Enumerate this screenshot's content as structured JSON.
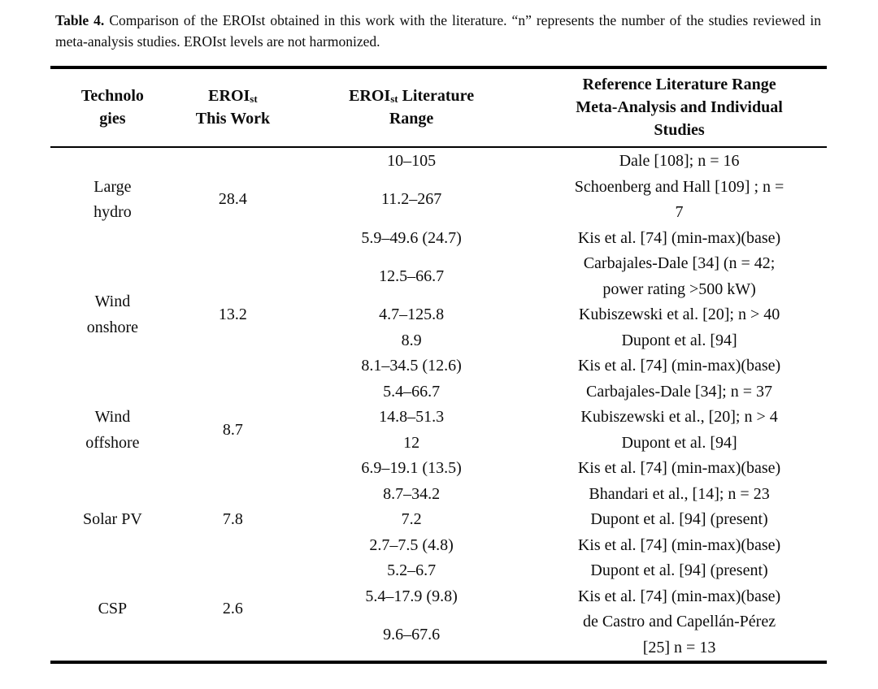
{
  "caption": {
    "label": "Table 4.",
    "text": "Comparison of the EROIst obtained in this work with the literature. “n” represents the number of the studies reviewed in meta-analysis studies. EROIst levels are not harmonized."
  },
  "table": {
    "headers": {
      "technologies": "Technolo\ngies",
      "eroi_this_work": {
        "base": "EROI",
        "sub": "st",
        "after": "",
        "line2": "This Work"
      },
      "eroi_literature": {
        "base": "EROI",
        "sub": "st",
        "after": " Literature",
        "line2": "Range"
      },
      "reference": "Reference Literature Range\nMeta-Analysis and Individual\nStudies"
    },
    "groups": [
      {
        "technology": "Large\nhydro",
        "eroi_this_work": "28.4",
        "rows": [
          {
            "range": "10–105",
            "reference": "Dale [108]; n = 16"
          },
          {
            "range": "11.2–267",
            "reference": "Schoenberg and Hall [109] ; n =\n7"
          },
          {
            "range": "5.9–49.6 (24.7)",
            "reference": "Kis et al. [74] (min-max)(base)"
          }
        ]
      },
      {
        "technology": "Wind\nonshore",
        "eroi_this_work": "13.2",
        "rows": [
          {
            "range": "12.5–66.7",
            "reference": "Carbajales-Dale [34] (n = 42;\npower rating >500 kW)"
          },
          {
            "range": "4.7–125.8",
            "reference": "Kubiszewski et al. [20]; n > 40"
          },
          {
            "range": "8.9",
            "reference": "Dupont et al. [94]"
          },
          {
            "range": "8.1–34.5 (12.6)",
            "reference": "Kis et al. [74] (min-max)(base)"
          }
        ]
      },
      {
        "technology": "Wind\noffshore",
        "eroi_this_work": "8.7",
        "rows": [
          {
            "range": "5.4–66.7",
            "reference": "Carbajales-Dale [34]; n = 37"
          },
          {
            "range": "14.8–51.3",
            "reference": "Kubiszewski et al., [20]; n > 4"
          },
          {
            "range": "12",
            "reference": "Dupont et al. [94]"
          },
          {
            "range": "6.9–19.1 (13.5)",
            "reference": "Kis et al. [74] (min-max)(base)"
          }
        ]
      },
      {
        "technology": "Solar PV",
        "eroi_this_work": "7.8",
        "rows": [
          {
            "range": "8.7–34.2",
            "reference": "Bhandari et al., [14]; n = 23"
          },
          {
            "range": "7.2",
            "reference": "Dupont et al. [94] (present)"
          },
          {
            "range": "2.7–7.5 (4.8)",
            "reference": "Kis et al. [74] (min-max)(base)"
          }
        ]
      },
      {
        "technology": "CSP",
        "eroi_this_work": "2.6",
        "rows": [
          {
            "range": "5.2–6.7",
            "reference": "Dupont et al. [94] (present)"
          },
          {
            "range": "5.4–17.9 (9.8)",
            "reference": "Kis et al. [74] (min-max)(base)"
          },
          {
            "range": "9.6–67.6",
            "reference": "de Castro and Capellán-Pérez\n[25] n = 13"
          }
        ]
      }
    ]
  }
}
